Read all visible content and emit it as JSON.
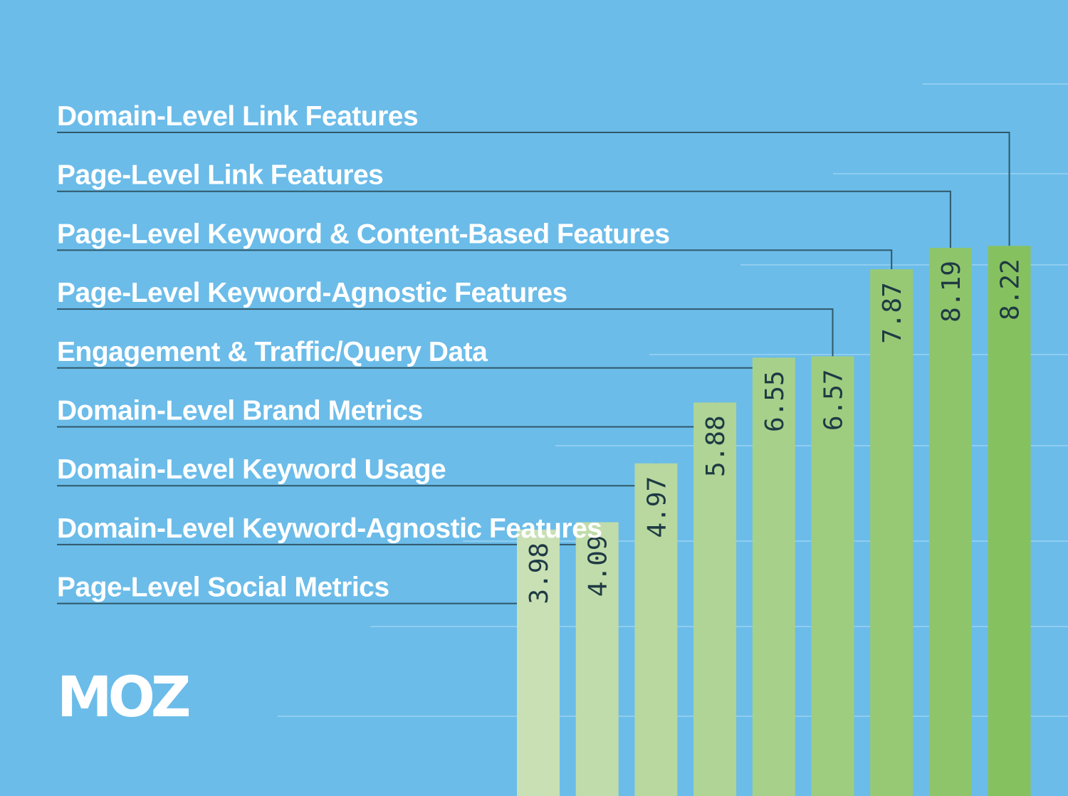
{
  "logo": {
    "text": "MOZ"
  },
  "colors": {
    "background": "#6bbce9",
    "bar_light": "#c8e0b4",
    "bar_dark": "#86c160",
    "leader": "#2f5869",
    "value_text": "#1f3a44"
  },
  "chart_data": {
    "type": "bar",
    "orientation": "vertical",
    "title": "",
    "xlabel": "",
    "ylabel": "",
    "ylim": [
      0,
      8.5
    ],
    "grid": false,
    "legend": "none",
    "categories": [
      "Page-Level Social Metrics",
      "Domain-Level Keyword-Agnostic Features",
      "Domain-Level Keyword Usage",
      "Domain-Level Brand Metrics",
      "Engagement & Traffic/Query Data",
      "Page-Level Keyword-Agnostic Features",
      "Page-Level Keyword & Content-Based Features",
      "Page-Level Link Features",
      "Domain-Level Link Features"
    ],
    "values": [
      3.98,
      4.09,
      4.97,
      5.88,
      6.55,
      6.57,
      7.87,
      8.19,
      8.22
    ],
    "value_labels": [
      "3.98",
      "4.09",
      "4.97",
      "5.88",
      "6.55",
      "6.57",
      "7.87",
      "8.19",
      "8.22"
    ]
  }
}
